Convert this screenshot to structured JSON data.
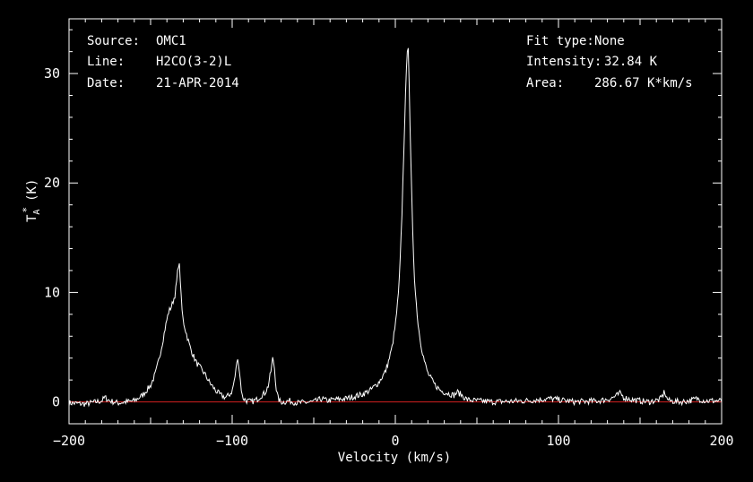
{
  "info_left": [
    {
      "label": "Source:",
      "value": "OMC1"
    },
    {
      "label": "Line:",
      "value": "H2CO(3-2)L"
    },
    {
      "label": "Date:",
      "value": "21-APR-2014"
    }
  ],
  "info_right": [
    {
      "label": "Fit type:",
      "value": "None"
    },
    {
      "label": "Intensity:",
      "value": "32.84 K"
    },
    {
      "label": "Area:",
      "value": "286.67 K*km/s"
    }
  ],
  "chart_data": {
    "type": "line",
    "xlabel": "Velocity (km/s)",
    "ylabel": "T",
    "ylabel_sub": "A",
    "ylabel_sup": "*",
    "ylabel_unit": "(K)",
    "xlim": [
      -200,
      200
    ],
    "ylim": [
      -2,
      35
    ],
    "x_ticks": [
      -200,
      -100,
      0,
      100,
      200
    ],
    "x_tick_labels": [
      "−200",
      "−100",
      "0",
      "100",
      "200"
    ],
    "y_ticks": [
      0,
      10,
      20,
      30
    ],
    "y_tick_labels": [
      "0",
      "10",
      "20",
      "30"
    ],
    "grid": false,
    "colors": {
      "spectrum": "#ffffff",
      "baseline": "#d42020",
      "axes": "#ffffff"
    },
    "baseline_y": 0,
    "series": [
      {
        "x": [
          -200,
          -190,
          -180,
          -178,
          -175,
          -170,
          -160,
          -155,
          -150,
          -147,
          -145,
          -143,
          -141,
          -139,
          -137,
          -135,
          -134,
          -133,
          -132.5,
          -132,
          -131,
          -130,
          -128,
          -126,
          -124,
          -122,
          -120,
          -117,
          -114,
          -110,
          -107,
          -104,
          -102,
          -100,
          -98,
          -97,
          -96,
          -95,
          -94,
          -93,
          -91,
          -88,
          -85,
          -82,
          -80,
          -78,
          -76,
          -75,
          -74,
          -73,
          -72,
          -71,
          -70,
          -68,
          -65,
          -60,
          -50,
          -45,
          -42,
          -38,
          -30,
          -20,
          -15,
          -10,
          -6,
          -4,
          -2,
          0,
          2,
          3,
          4,
          5,
          6,
          7,
          7.5,
          8,
          8.5,
          9,
          10,
          11,
          12,
          14,
          16,
          18,
          20,
          24,
          28,
          32,
          36,
          38,
          40,
          44,
          50,
          60,
          80,
          95,
          100,
          110,
          125,
          132,
          136,
          138,
          140,
          145,
          155,
          162,
          164,
          165,
          166,
          168,
          175,
          180,
          185,
          190,
          200
        ],
        "y": [
          -0.1,
          -0.2,
          0.1,
          0.4,
          0.1,
          -0.1,
          0.1,
          0.6,
          1.5,
          2.6,
          3.8,
          5.2,
          6.8,
          8.2,
          8.8,
          9.8,
          11.0,
          12.5,
          12.7,
          11.8,
          8.8,
          7.4,
          6.2,
          5.1,
          4.3,
          3.6,
          3.2,
          2.6,
          1.8,
          1.0,
          0.6,
          0.4,
          0.6,
          1.0,
          2.5,
          3.9,
          3.5,
          2.0,
          0.6,
          0.3,
          0.1,
          0.0,
          0.2,
          0.6,
          0.8,
          1.4,
          3.0,
          4.1,
          3.0,
          1.2,
          0.4,
          0.1,
          0.0,
          0.0,
          0.1,
          -0.1,
          0.0,
          0.3,
          0.1,
          0.2,
          0.3,
          0.7,
          1.1,
          1.8,
          2.8,
          3.8,
          5.0,
          7.0,
          10.0,
          13.0,
          17.0,
          22.0,
          27.0,
          31.0,
          32.8,
          32.5,
          29.0,
          25.0,
          19.0,
          14.0,
          10.5,
          7.0,
          5.0,
          3.6,
          2.6,
          1.6,
          1.0,
          0.8,
          0.6,
          0.9,
          0.7,
          0.2,
          0.1,
          0.0,
          0.1,
          0.3,
          0.2,
          0.0,
          0.1,
          0.3,
          0.6,
          0.8,
          0.4,
          0.2,
          0.0,
          0.2,
          0.6,
          1.0,
          0.4,
          0.1,
          0.0,
          0.1,
          0.3,
          0.1,
          0.1
        ]
      }
    ]
  }
}
